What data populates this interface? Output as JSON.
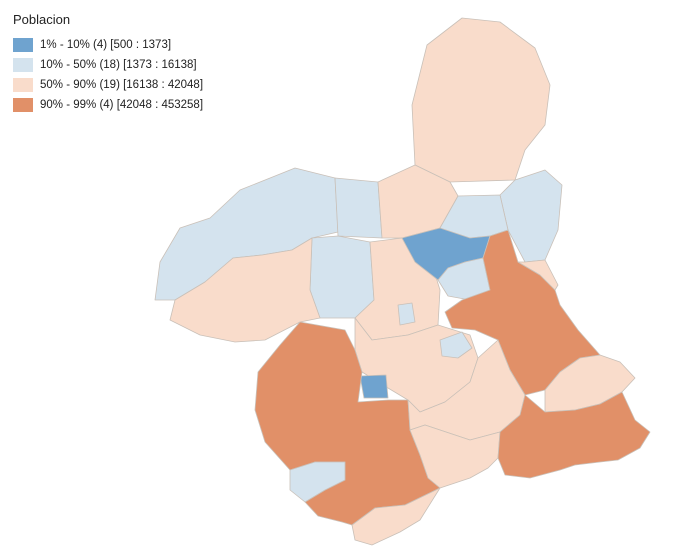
{
  "legend": {
    "title": "Poblacion",
    "classes": [
      {
        "label": "1% - 10% (4)  [500 : 1373]",
        "color": "#6fa3cf"
      },
      {
        "label": "10% - 50% (18)  [1373 : 16138]",
        "color": "#d4e3ee"
      },
      {
        "label": "50% - 90% (19)  [16138 : 42048]",
        "color": "#f9dccb"
      },
      {
        "label": "90% - 99% (4)  [42048 : 453258]",
        "color": "#e19068"
      }
    ]
  }
}
